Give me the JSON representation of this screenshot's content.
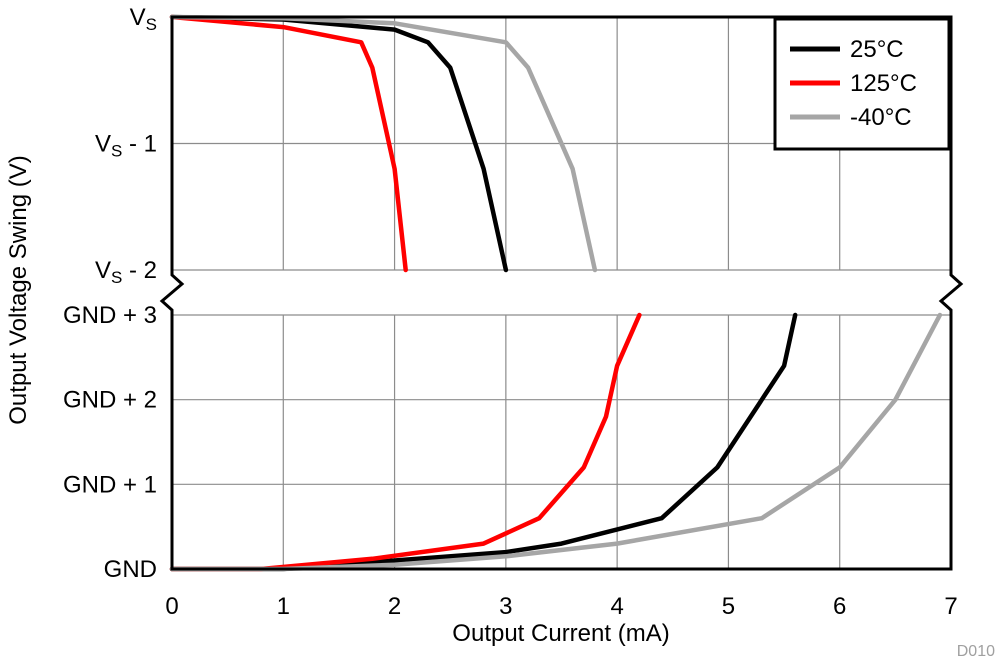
{
  "chart_data": {
    "type": "line",
    "title": "",
    "xlabel": "Output Current (mA)",
    "ylabel": "Output Voltage Swing (V)",
    "xlim": [
      0,
      7
    ],
    "x_ticks": [
      "0",
      "1",
      "2",
      "3",
      "4",
      "5",
      "6",
      "7"
    ],
    "grid": true,
    "legend_position": "top-right",
    "watermark": "D010",
    "panels": [
      {
        "name": "high-side",
        "ylim_label": [
          "VS - 2",
          "VS"
        ],
        "y_ticks": [
          {
            "value": 0,
            "label": "V",
            "sub": "S",
            "suffix": ""
          },
          {
            "value": -1,
            "label": "V",
            "sub": "S",
            "suffix": " - 1"
          },
          {
            "value": -2,
            "label": "V",
            "sub": "S",
            "suffix": " - 2"
          }
        ],
        "ylim": [
          -2,
          0
        ]
      },
      {
        "name": "low-side",
        "y_ticks": [
          {
            "value": 3,
            "label": "GND + 3"
          },
          {
            "value": 2,
            "label": "GND + 2"
          },
          {
            "value": 1,
            "label": "GND + 1"
          },
          {
            "value": 0,
            "label": "GND"
          }
        ],
        "ylim": [
          0,
          3
        ]
      }
    ],
    "series": [
      {
        "name": "25°C",
        "color": "#000000",
        "high_side": [
          [
            0,
            0
          ],
          [
            1,
            -0.02
          ],
          [
            2,
            -0.1
          ],
          [
            2.3,
            -0.2
          ],
          [
            2.5,
            -0.4
          ],
          [
            2.8,
            -1.2
          ],
          [
            3.0,
            -2.0
          ]
        ],
        "low_side": [
          [
            0,
            0
          ],
          [
            1,
            0
          ],
          [
            2,
            0.1
          ],
          [
            3,
            0.2
          ],
          [
            3.5,
            0.3
          ],
          [
            4.4,
            0.6
          ],
          [
            4.9,
            1.2
          ],
          [
            5.3,
            2.0
          ],
          [
            5.5,
            2.4
          ],
          [
            5.6,
            3.0
          ]
        ]
      },
      {
        "name": "125°C",
        "color": "#ff0000",
        "high_side": [
          [
            0,
            0
          ],
          [
            1,
            -0.08
          ],
          [
            1.7,
            -0.2
          ],
          [
            1.8,
            -0.4
          ],
          [
            2.0,
            -1.2
          ],
          [
            2.1,
            -2.0
          ]
        ],
        "low_side": [
          [
            0,
            0
          ],
          [
            0.8,
            0
          ],
          [
            1.8,
            0.12
          ],
          [
            2.8,
            0.3
          ],
          [
            3.3,
            0.6
          ],
          [
            3.7,
            1.2
          ],
          [
            3.9,
            1.8
          ],
          [
            4.0,
            2.4
          ],
          [
            4.2,
            3.0
          ]
        ]
      },
      {
        "name": "-40°C",
        "color": "#a6a6a6",
        "high_side": [
          [
            0,
            0
          ],
          [
            1,
            -0.01
          ],
          [
            2,
            -0.05
          ],
          [
            3,
            -0.2
          ],
          [
            3.2,
            -0.4
          ],
          [
            3.6,
            -1.2
          ],
          [
            3.8,
            -2.0
          ]
        ],
        "low_side": [
          [
            0,
            0
          ],
          [
            1,
            0
          ],
          [
            2,
            0.05
          ],
          [
            3,
            0.15
          ],
          [
            4,
            0.3
          ],
          [
            5.3,
            0.6
          ],
          [
            6.0,
            1.2
          ],
          [
            6.5,
            2.0
          ],
          [
            6.9,
            3.0
          ]
        ]
      }
    ]
  }
}
